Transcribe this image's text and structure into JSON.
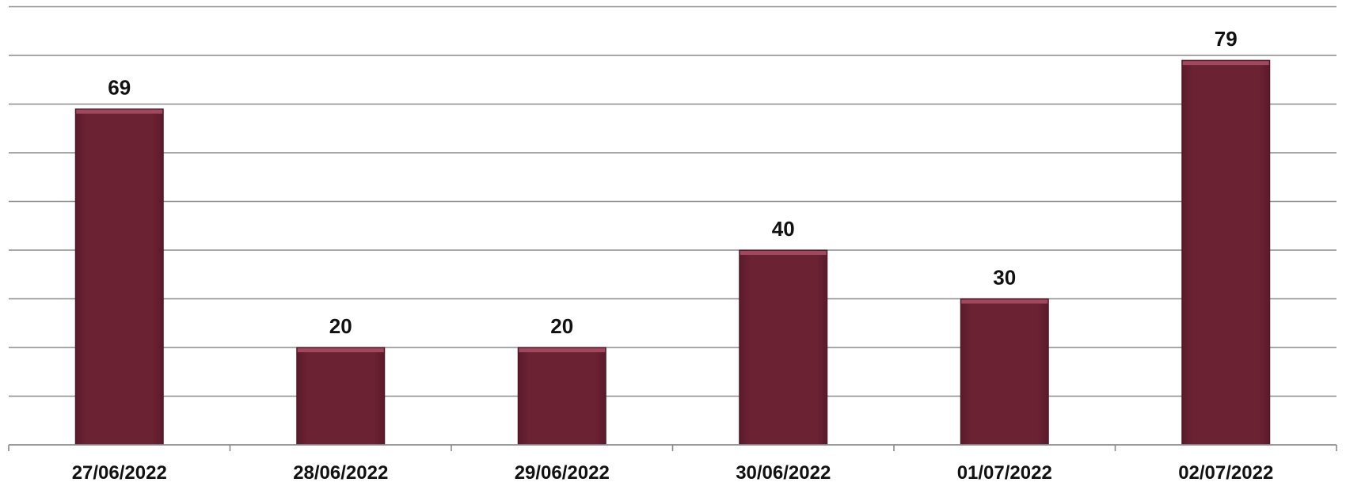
{
  "chart_data": {
    "type": "bar",
    "categories": [
      "27/06/2022",
      "28/06/2022",
      "29/06/2022",
      "30/06/2022",
      "01/07/2022",
      "02/07/2022"
    ],
    "values": [
      69,
      20,
      20,
      40,
      30,
      79
    ],
    "ylim": [
      0,
      90
    ],
    "y_gridline_step": 10,
    "grid": true,
    "y_axis_labels_visible": false,
    "data_labels_visible": true,
    "legend": "none",
    "bar_color": "#6b2233",
    "bar_highlight_color": "#a0485e",
    "gridline_color": "#8c8c8c",
    "label_color": "#111111"
  }
}
